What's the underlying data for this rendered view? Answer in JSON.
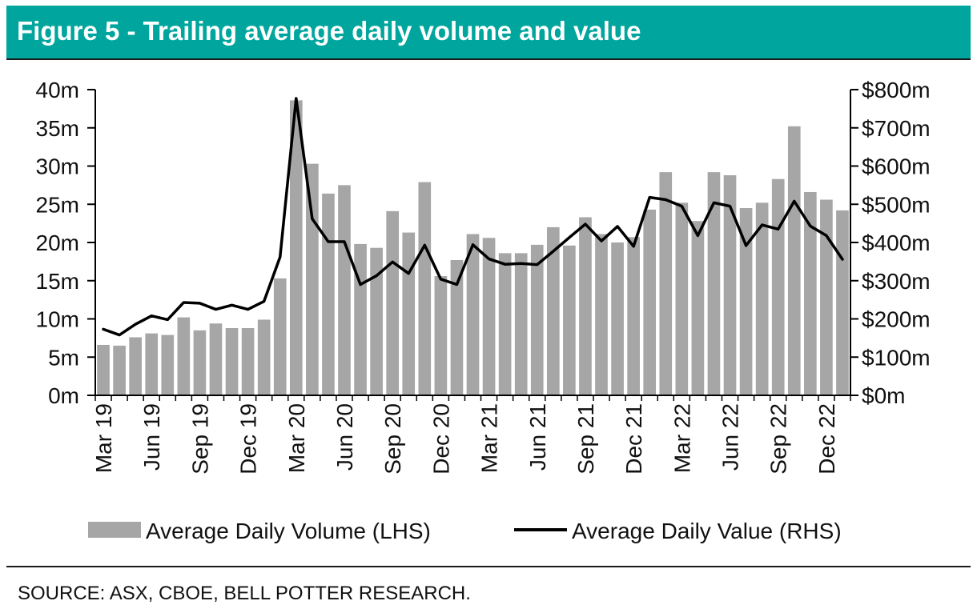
{
  "header": {
    "title": "Figure 5 - Trailing average daily volume and value"
  },
  "footer": {
    "source": "SOURCE: ASX, CBOE, BELL POTTER RESEARCH."
  },
  "colors": {
    "header_bg": "#00a69d",
    "bar": "#a6a6a6",
    "line": "#000000"
  },
  "chart_data": {
    "type": "bar",
    "combo": "bar+line, dual y-axis",
    "categories": [
      "Mar 19",
      "Apr 19",
      "May 19",
      "Jun 19",
      "Jul 19",
      "Aug 19",
      "Sep 19",
      "Oct 19",
      "Nov 19",
      "Dec 19",
      "Jan 20",
      "Feb 20",
      "Mar 20",
      "Apr 20",
      "May 20",
      "Jun 20",
      "Jul 20",
      "Aug 20",
      "Sep 20",
      "Oct 20",
      "Nov 20",
      "Dec 20",
      "Jan 21",
      "Feb 21",
      "Mar 21",
      "Apr 21",
      "May 21",
      "Jun 21",
      "Jul 21",
      "Aug 21",
      "Sep 21",
      "Oct 21",
      "Nov 21",
      "Dec 21",
      "Jan 22",
      "Feb 22",
      "Mar 22",
      "Apr 22",
      "May 22",
      "Jun 22",
      "Jul 22",
      "Aug 22",
      "Sep 22",
      "Oct 22",
      "Nov 22",
      "Dec 22",
      "Jan 23"
    ],
    "tick_labels": [
      "Mar 19",
      "Jun 19",
      "Sep 19",
      "Dec 19",
      "Mar 20",
      "Jun 20",
      "Sep 20",
      "Dec 20",
      "Mar 21",
      "Jun 21",
      "Sep 21",
      "Dec 21",
      "Mar 22",
      "Jun 22",
      "Sep 22",
      "Dec 22"
    ],
    "series": [
      {
        "name": "Average Daily Volume (LHS)",
        "type": "bar",
        "axis": "left",
        "values": [
          6.6,
          6.5,
          7.6,
          8.1,
          7.9,
          10.2,
          8.5,
          9.4,
          8.8,
          8.8,
          9.9,
          15.3,
          38.6,
          30.3,
          26.4,
          27.5,
          19.8,
          19.3,
          24.1,
          21.3,
          27.9,
          15.6,
          17.7,
          21.1,
          20.6,
          18.6,
          18.6,
          19.7,
          22.0,
          19.6,
          23.3,
          21.1,
          20.0,
          20.7,
          24.3,
          29.2,
          25.2,
          22.8,
          29.2,
          28.8,
          24.5,
          25.2,
          28.3,
          35.2,
          26.6,
          25.6,
          24.2
        ]
      },
      {
        "name": "Average Daily Value (RHS)",
        "type": "line",
        "axis": "right",
        "values": [
          173,
          158,
          186,
          208,
          198,
          243,
          241,
          225,
          236,
          225,
          246,
          362,
          777,
          462,
          402,
          402,
          290,
          313,
          349,
          319,
          393,
          304,
          290,
          394,
          357,
          343,
          345,
          342,
          377,
          413,
          448,
          404,
          442,
          390,
          518,
          512,
          495,
          418,
          504,
          495,
          392,
          446,
          435,
          508,
          443,
          418,
          356
        ]
      }
    ],
    "y_left": {
      "ticks": [
        "0m",
        "5m",
        "10m",
        "15m",
        "20m",
        "25m",
        "30m",
        "35m",
        "40m"
      ],
      "ylim": [
        0,
        40
      ]
    },
    "y_right": {
      "ticks": [
        "$0m",
        "$100m",
        "$200m",
        "$300m",
        "$400m",
        "$500m",
        "$600m",
        "$700m",
        "$800m"
      ],
      "ylim": [
        0,
        800
      ]
    },
    "legend_placement": "bottom",
    "grid": false
  }
}
